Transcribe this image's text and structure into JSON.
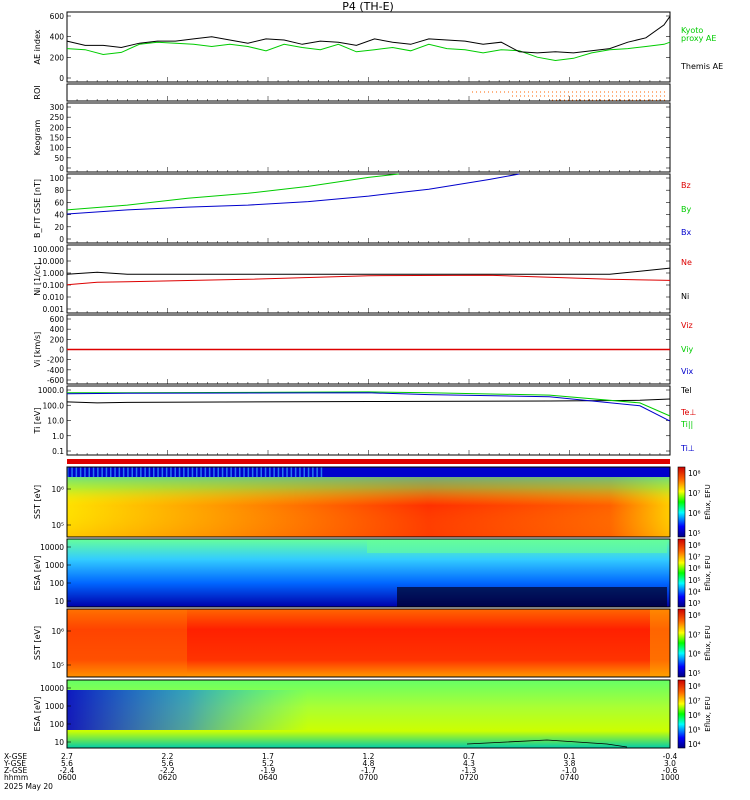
{
  "title": "P4 (TH-E)",
  "colors": {
    "green": "#00cc00",
    "red": "#dd0000",
    "blue": "#0000cc",
    "black": "#000000",
    "orange": "#ff6600"
  },
  "colorbar_label": "Eflux, EFU",
  "footer": {
    "row_labels": [
      "X-GSE",
      "Y-GSE",
      "Z-GSE",
      "hhmm",
      "2025 May 20"
    ],
    "ticks": [
      {
        "x": "2.7",
        "y": "5.6",
        "z": "-2.4",
        "t": "0600"
      },
      {
        "x": "2.2",
        "y": "5.6",
        "z": "-2.2",
        "t": "0620"
      },
      {
        "x": "1.7",
        "y": "5.2",
        "z": "-1.9",
        "t": "0640"
      },
      {
        "x": "1.2",
        "y": "4.8",
        "z": "-1.7",
        "t": "0700"
      },
      {
        "x": "0.7",
        "y": "4.3",
        "z": "-1.3",
        "t": "0720"
      },
      {
        "x": "0.1",
        "y": "3.8",
        "z": "-1.0",
        "t": "0740"
      },
      {
        "x": "-0.4",
        "y": "3.0",
        "z": "-0.6",
        "t": "1000"
      }
    ]
  },
  "chart_data": [
    {
      "id": "ae",
      "type": "line",
      "ylabel": "AE index",
      "ylim": [
        -50,
        600
      ],
      "yticks": [
        "600",
        "400",
        "200",
        "0"
      ],
      "legend": [
        "Kyoto",
        "proxy AE",
        "Themis AE"
      ],
      "series": [
        {
          "name": "Kyoto proxy AE",
          "color": "green",
          "x": [
            0,
            0.03,
            0.06,
            0.09,
            0.12,
            0.15,
            0.18,
            0.21,
            0.24,
            0.27,
            0.3,
            0.33,
            0.36,
            0.39,
            0.42,
            0.45,
            0.48,
            0.51,
            0.54,
            0.57,
            0.6,
            0.63,
            0.66,
            0.69,
            0.72,
            0.75,
            0.78,
            0.81,
            0.84,
            0.87,
            0.9,
            0.93,
            0.96,
            0.99,
            1.0
          ],
          "values": [
            260,
            250,
            205,
            225,
            300,
            320,
            310,
            300,
            280,
            300,
            280,
            240,
            300,
            270,
            250,
            300,
            230,
            250,
            270,
            240,
            300,
            260,
            250,
            220,
            250,
            240,
            180,
            150,
            170,
            220,
            250,
            260,
            280,
            300,
            320
          ]
        },
        {
          "name": "Themis AE",
          "color": "black",
          "x": [
            0,
            0.03,
            0.06,
            0.09,
            0.12,
            0.15,
            0.18,
            0.21,
            0.24,
            0.27,
            0.3,
            0.33,
            0.36,
            0.39,
            0.42,
            0.45,
            0.48,
            0.51,
            0.54,
            0.57,
            0.6,
            0.63,
            0.66,
            0.69,
            0.72,
            0.75,
            0.78,
            0.81,
            0.84,
            0.87,
            0.9,
            0.93,
            0.96,
            0.99,
            1.0
          ],
          "values": [
            330,
            290,
            290,
            270,
            310,
            330,
            330,
            350,
            370,
            340,
            310,
            350,
            340,
            300,
            330,
            320,
            290,
            350,
            320,
            300,
            350,
            340,
            330,
            300,
            320,
            230,
            220,
            230,
            220,
            240,
            260,
            320,
            360,
            480,
            560
          ]
        }
      ]
    },
    {
      "id": "roi",
      "type": "line",
      "ylabel": "ROI"
    },
    {
      "id": "keogram",
      "type": "line",
      "ylabel": "Keogram",
      "ylim": [
        0,
        300
      ],
      "yticks": [
        "300",
        "250",
        "200",
        "150",
        "100",
        "50",
        "0"
      ]
    },
    {
      "id": "bfit",
      "type": "line",
      "ylabel": "B_FIT GSE [nT]",
      "ylim": [
        0,
        100
      ],
      "yticks": [
        "100",
        "80",
        "60",
        "40",
        "20",
        "0"
      ],
      "legend": [
        "Bz",
        "By",
        "Bx"
      ],
      "series": [
        {
          "name": "By",
          "color": "green",
          "x": [
            0,
            0.1,
            0.2,
            0.3,
            0.4,
            0.5,
            0.55
          ],
          "values": [
            48,
            55,
            65,
            72,
            82,
            95,
            100
          ]
        },
        {
          "name": "Bx",
          "color": "blue",
          "x": [
            0,
            0.1,
            0.2,
            0.3,
            0.4,
            0.5,
            0.6,
            0.7,
            0.75
          ],
          "values": [
            42,
            48,
            52,
            55,
            60,
            68,
            78,
            92,
            100
          ]
        }
      ]
    },
    {
      "id": "ni",
      "type": "line",
      "ylabel": "Ni [1/cc]",
      "scale": "log",
      "ylim": [
        0.001,
        100
      ],
      "yticks": [
        "100.000",
        "10.000",
        "1.000",
        "0.100",
        "0.010",
        "0.001"
      ],
      "legend": [
        "Ne",
        "Ni"
      ],
      "series": [
        {
          "name": "Ni",
          "color": "black",
          "x": [
            0,
            0.05,
            0.1,
            0.3,
            0.5,
            0.7,
            0.9,
            1.0
          ],
          "values": [
            0.7,
            1.0,
            0.7,
            0.7,
            0.7,
            0.7,
            0.7,
            2.0
          ]
        },
        {
          "name": "Ne",
          "color": "red",
          "x": [
            0,
            0.05,
            0.1,
            0.3,
            0.5,
            0.7,
            0.9,
            1.0
          ],
          "values": [
            0.12,
            0.18,
            0.2,
            0.3,
            0.55,
            0.6,
            0.3,
            0.25
          ]
        }
      ]
    },
    {
      "id": "vi",
      "type": "line",
      "ylabel": "Vi [km/s]",
      "ylim": [
        -600,
        600
      ],
      "yticks": [
        "600",
        "400",
        "200",
        "0",
        "-200",
        "-400",
        "-600"
      ],
      "legend": [
        "Viz",
        "Viy",
        "Vix"
      ],
      "series": [
        {
          "name": "Viz",
          "color": "red",
          "x": [
            0,
            1
          ],
          "values": [
            0,
            0
          ]
        },
        {
          "name": "Viy",
          "color": "green",
          "x": [
            0,
            1
          ],
          "values": [
            0,
            0
          ]
        }
      ]
    },
    {
      "id": "ti",
      "type": "line",
      "ylabel": "Ti [eV]",
      "scale": "log",
      "ylim": [
        0.05,
        10000
      ],
      "yticks": [
        "1000.0",
        "100.0",
        "10.0",
        "1.0",
        "0.1"
      ],
      "legend": [
        "Tel",
        "Te⊥",
        "Ti||",
        "Ti⊥"
      ],
      "series": [
        {
          "name": "Tel",
          "color": "black",
          "x": [
            0,
            0.05,
            0.1,
            0.5,
            0.8,
            0.95,
            1.0
          ],
          "values": [
            600,
            500,
            550,
            650,
            700,
            800,
            1000
          ]
        },
        {
          "name": "Ti||",
          "color": "green",
          "x": [
            0,
            0.1,
            0.5,
            0.6,
            0.8,
            0.95,
            1.0
          ],
          "values": [
            3000,
            3000,
            3500,
            3000,
            2000,
            500,
            50
          ]
        },
        {
          "name": "Ti⊥",
          "color": "blue",
          "x": [
            0,
            0.1,
            0.5,
            0.6,
            0.8,
            0.95,
            1.0
          ],
          "values": [
            2500,
            2800,
            3000,
            2200,
            1500,
            300,
            20
          ]
        }
      ]
    },
    {
      "id": "sst_i",
      "type": "heatmap",
      "ylabel": "SST [eV]",
      "yticks": [
        "10⁶",
        "10⁵"
      ],
      "cbar_ticks": [
        "10⁸",
        "10⁷",
        "10⁶",
        "10⁵"
      ]
    },
    {
      "id": "esa_i",
      "type": "heatmap",
      "ylabel": "ESA [eV]",
      "yticks": [
        "10000",
        "1000",
        "100",
        "10"
      ],
      "cbar_ticks": [
        "10⁸",
        "10⁷",
        "10⁶",
        "10⁵",
        "10⁴",
        "10³"
      ]
    },
    {
      "id": "sst_e",
      "type": "heatmap",
      "ylabel": "SST [eV]",
      "yticks": [
        "10⁶",
        "10⁵"
      ],
      "cbar_ticks": [
        "10⁸",
        "10⁷",
        "10⁶",
        "10⁵"
      ]
    },
    {
      "id": "esa_e",
      "type": "heatmap",
      "ylabel": "ESA [eV]",
      "yticks": [
        "10000",
        "1000",
        "100",
        "10"
      ],
      "cbar_ticks": [
        "10⁸",
        "10⁷",
        "10⁶",
        "10⁵",
        "10⁴"
      ]
    }
  ]
}
